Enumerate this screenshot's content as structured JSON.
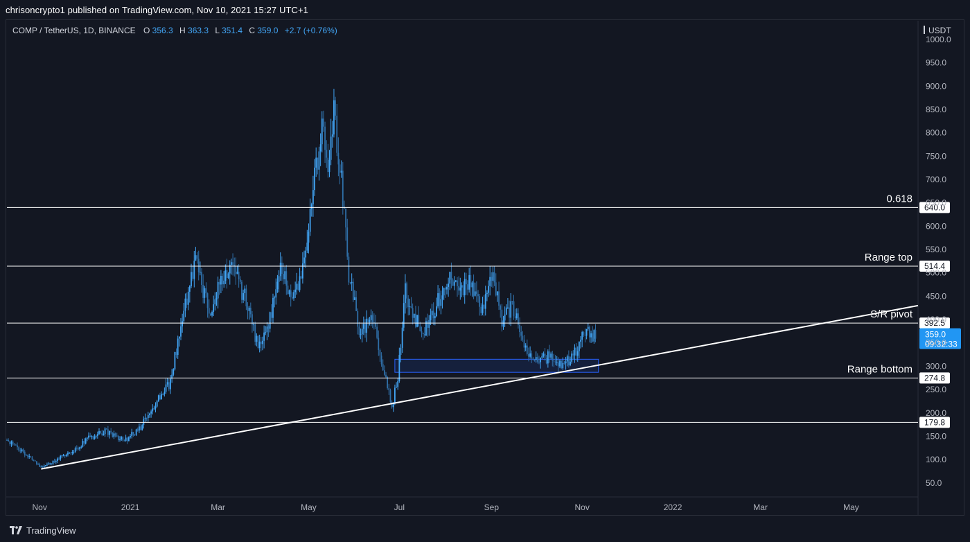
{
  "header": {
    "publish_text": "chrisoncrypto1 published on TradingView.com, Nov 10, 2021 15:27 UTC+1"
  },
  "footer": {
    "brand": "TradingView",
    "logo_icon": "tradingview-logo-icon"
  },
  "colors": {
    "background": "#131722",
    "candle": "#42a5f5",
    "candle_dark": "#2f6fa8",
    "level_line": "#ffffff",
    "trendline": "#ffffff",
    "grid_border": "#2a2e39",
    "price_tag": "#2196f3",
    "zone": "#2962ff"
  },
  "chart_data": {
    "type": "candlestick",
    "symbol_line": {
      "symbol": "COMP / TetherUS, 1D, BINANCE",
      "o_label": "O",
      "o_value": "356.3",
      "h_label": "H",
      "h_value": "363.3",
      "l_label": "L",
      "l_value": "351.4",
      "c_label": "C",
      "c_value": "359.0",
      "change": "+2.7 (+0.76%)"
    },
    "currency_label": "USDT",
    "ylim": [
      20,
      1040
    ],
    "xlim": [
      "2020-10-10",
      "2022-06-15"
    ],
    "y_ticks": [
      "1000.0",
      "950.0",
      "900.0",
      "850.0",
      "800.0",
      "750.0",
      "700.0",
      "650.0",
      "600.0",
      "550.0",
      "500.0",
      "450.0",
      "400.0",
      "350.0",
      "300.0",
      "250.0",
      "200.0",
      "150.0",
      "100.0",
      "50.0"
    ],
    "x_ticks": [
      {
        "label": "Nov",
        "date": "2020-11-01"
      },
      {
        "label": "2021",
        "date": "2021-01-01"
      },
      {
        "label": "Mar",
        "date": "2021-03-01"
      },
      {
        "label": "May",
        "date": "2021-05-01"
      },
      {
        "label": "Jul",
        "date": "2021-07-01"
      },
      {
        "label": "Sep",
        "date": "2021-09-01"
      },
      {
        "label": "Nov",
        "date": "2021-11-01"
      },
      {
        "label": "2022",
        "date": "2022-01-01"
      },
      {
        "label": "Mar",
        "date": "2022-03-01"
      },
      {
        "label": "May",
        "date": "2022-05-01"
      }
    ],
    "horizontal_levels": [
      {
        "price": 640.0,
        "tag": "640.0",
        "label": "0.618"
      },
      {
        "price": 514.4,
        "tag": "514.4",
        "label": "Range top"
      },
      {
        "price": 392.5,
        "tag": "392.5",
        "label": "S/R pivot"
      },
      {
        "price": 274.8,
        "tag": "274.8",
        "label": "Range bottom"
      },
      {
        "price": 179.8,
        "tag": "179.8",
        "label": ""
      }
    ],
    "last_price": {
      "price": 359.0,
      "value": "359.0",
      "countdown": "09:32:33"
    },
    "trendline": {
      "start": {
        "date": "2020-11-02",
        "price": 80
      },
      "end": {
        "date": "2022-06-15",
        "price": 430
      }
    },
    "zone": {
      "from": "2021-06-28",
      "to": "2021-11-12",
      "top": 315,
      "bottom": 287
    },
    "price_path": [
      {
        "date": "2020-10-10",
        "price": 142
      },
      {
        "date": "2020-10-20",
        "price": 118
      },
      {
        "date": "2020-11-02",
        "price": 82
      },
      {
        "date": "2020-11-12",
        "price": 100
      },
      {
        "date": "2020-11-25",
        "price": 122
      },
      {
        "date": "2020-12-05",
        "price": 148
      },
      {
        "date": "2020-12-15",
        "price": 160
      },
      {
        "date": "2020-12-28",
        "price": 140
      },
      {
        "date": "2021-01-08",
        "price": 170
      },
      {
        "date": "2021-01-20",
        "price": 230
      },
      {
        "date": "2021-01-28",
        "price": 265
      },
      {
        "date": "2021-02-06",
        "price": 420
      },
      {
        "date": "2021-02-14",
        "price": 530
      },
      {
        "date": "2021-02-24",
        "price": 400
      },
      {
        "date": "2021-03-02",
        "price": 480
      },
      {
        "date": "2021-03-10",
        "price": 510
      },
      {
        "date": "2021-03-20",
        "price": 440
      },
      {
        "date": "2021-03-28",
        "price": 340
      },
      {
        "date": "2021-04-05",
        "price": 400
      },
      {
        "date": "2021-04-12",
        "price": 520
      },
      {
        "date": "2021-04-20",
        "price": 440
      },
      {
        "date": "2021-04-28",
        "price": 520
      },
      {
        "date": "2021-05-05",
        "price": 700
      },
      {
        "date": "2021-05-10",
        "price": 820
      },
      {
        "date": "2021-05-13",
        "price": 720
      },
      {
        "date": "2021-05-18",
        "price": 850
      },
      {
        "date": "2021-05-23",
        "price": 700
      },
      {
        "date": "2021-05-28",
        "price": 500
      },
      {
        "date": "2021-06-05",
        "price": 360
      },
      {
        "date": "2021-06-12",
        "price": 420
      },
      {
        "date": "2021-06-20",
        "price": 300
      },
      {
        "date": "2021-06-26",
        "price": 210
      },
      {
        "date": "2021-06-30",
        "price": 280
      },
      {
        "date": "2021-07-05",
        "price": 460
      },
      {
        "date": "2021-07-10",
        "price": 400
      },
      {
        "date": "2021-07-18",
        "price": 380
      },
      {
        "date": "2021-07-25",
        "price": 420
      },
      {
        "date": "2021-08-02",
        "price": 490
      },
      {
        "date": "2021-08-10",
        "price": 460
      },
      {
        "date": "2021-08-18",
        "price": 480
      },
      {
        "date": "2021-08-26",
        "price": 420
      },
      {
        "date": "2021-09-02",
        "price": 500
      },
      {
        "date": "2021-09-08",
        "price": 400
      },
      {
        "date": "2021-09-15",
        "price": 430
      },
      {
        "date": "2021-09-22",
        "price": 360
      },
      {
        "date": "2021-09-29",
        "price": 310
      },
      {
        "date": "2021-10-08",
        "price": 320
      },
      {
        "date": "2021-10-18",
        "price": 300
      },
      {
        "date": "2021-10-26",
        "price": 320
      },
      {
        "date": "2021-11-03",
        "price": 380
      },
      {
        "date": "2021-11-10",
        "price": 359
      }
    ]
  }
}
